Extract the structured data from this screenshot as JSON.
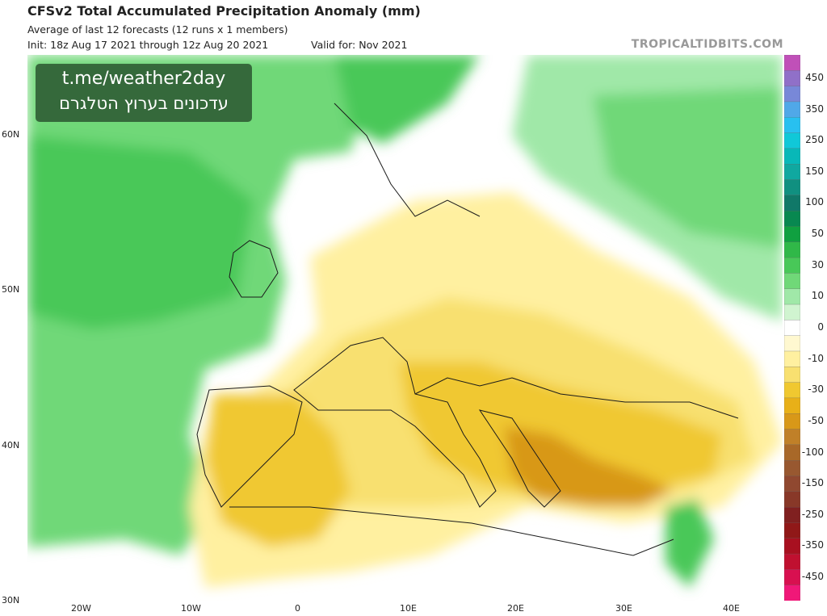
{
  "header": {
    "title": "CFSv2 Total Accumulated Precipitation Anomaly (mm)",
    "subtitle": "Average of last 12 forecasts (12 runs x 1 members)",
    "init": "Init: 18z Aug 17 2021 through 12z Aug 20 2021",
    "valid": "Valid for: Nov 2021",
    "brand": "TROPICALTIDBITS.COM"
  },
  "overlay": {
    "line1": "t.me/weather2day",
    "line2": "עדכונים בערוץ הטלגרם"
  },
  "legend": {
    "levels": [
      {
        "label": "",
        "color": "#c050b8"
      },
      {
        "label": "450",
        "color": "#9070c8"
      },
      {
        "label": "",
        "color": "#7888d8"
      },
      {
        "label": "350",
        "color": "#50a8e8"
      },
      {
        "label": "",
        "color": "#28c0f0"
      },
      {
        "label": "250",
        "color": "#10c8d8"
      },
      {
        "label": "",
        "color": "#08b8b8"
      },
      {
        "label": "150",
        "color": "#10a8a0"
      },
      {
        "label": "",
        "color": "#109080"
      },
      {
        "label": "100",
        "color": "#107868"
      },
      {
        "label": "",
        "color": "#088850"
      },
      {
        "label": "50",
        "color": "#10a040"
      },
      {
        "label": "",
        "color": "#30b848"
      },
      {
        "label": "30",
        "color": "#48c858"
      },
      {
        "label": "",
        "color": "#70d878"
      },
      {
        "label": "10",
        "color": "#a0e8a8"
      },
      {
        "label": "",
        "color": "#d0f4d0"
      },
      {
        "label": "0",
        "color": "#ffffff"
      },
      {
        "label": "",
        "color": "#fff8d0"
      },
      {
        "label": "-10",
        "color": "#fff0a0"
      },
      {
        "label": "",
        "color": "#f8e070"
      },
      {
        "label": "-30",
        "color": "#f0c830"
      },
      {
        "label": "",
        "color": "#e8b018"
      },
      {
        "label": "-50",
        "color": "#d89818"
      },
      {
        "label": "",
        "color": "#c08028"
      },
      {
        "label": "-100",
        "color": "#a86828"
      },
      {
        "label": "",
        "color": "#985830"
      },
      {
        "label": "-150",
        "color": "#904830"
      },
      {
        "label": "",
        "color": "#883828"
      },
      {
        "label": "-250",
        "color": "#802020"
      },
      {
        "label": "",
        "color": "#901818"
      },
      {
        "label": "-350",
        "color": "#a81020"
      },
      {
        "label": "",
        "color": "#c01030"
      },
      {
        "label": "-450",
        "color": "#d81050"
      },
      {
        "label": "",
        "color": "#f01878"
      }
    ]
  },
  "axes": {
    "lat_labels": [
      "60N",
      "50N",
      "40N",
      "30N"
    ],
    "lon_labels": [
      "20W",
      "10W",
      "0",
      "10E",
      "20E",
      "30E",
      "40E"
    ]
  }
}
